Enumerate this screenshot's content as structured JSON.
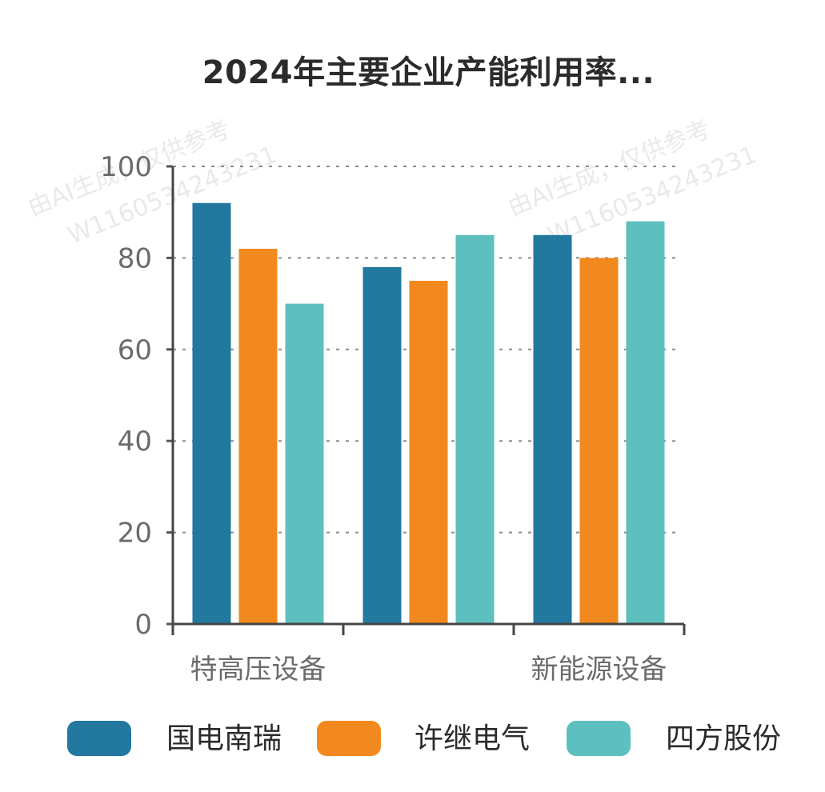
{
  "chart_data": {
    "type": "bar",
    "title": "2024年主要企业产能利用率...",
    "xlabel": "",
    "ylabel": "",
    "ylim": [
      0,
      100
    ],
    "yticks": [
      0,
      20,
      40,
      60,
      80,
      100
    ],
    "categories": [
      "特高压设备",
      "",
      "新能源设备"
    ],
    "series": [
      {
        "name": "国电南瑞",
        "color": "#22789f",
        "values": [
          92,
          78,
          85
        ]
      },
      {
        "name": "许继电气",
        "color": "#f2891e",
        "values": [
          82,
          75,
          80
        ]
      },
      {
        "name": "四方股份",
        "color": "#5ebfbf",
        "values": [
          70,
          85,
          88
        ]
      }
    ],
    "grid": true,
    "legend": "bottom"
  },
  "watermarks": [
    "由AI生成，仅供参考",
    "W1160534243231",
    "由AI生成，仅供参考",
    "W1160534243231"
  ]
}
